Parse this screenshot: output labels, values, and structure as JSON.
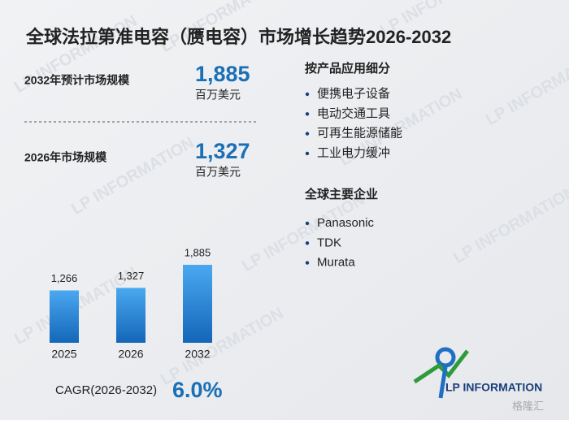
{
  "title": "全球法拉第准电容（赝电容）市场增长趋势2026-2032",
  "metrics": [
    {
      "label": "2032年预计市场规模",
      "value": "1,885",
      "unit": "百万美元"
    },
    {
      "label": "2026年市场规模",
      "value": "1,327",
      "unit": "百万美元"
    }
  ],
  "chart_data": {
    "type": "bar",
    "categories": [
      "2025",
      "2026",
      "2032"
    ],
    "values": [
      1266,
      1327,
      1885
    ],
    "value_labels": [
      "1,266",
      "1,327",
      "1,885"
    ],
    "color": "#1f7fd6"
  },
  "cagr": {
    "label": "CAGR(2026-2032)",
    "value": "6.0%"
  },
  "segments": {
    "title": "按产品应用细分",
    "items": [
      "便携电子设备",
      "电动交通工具",
      "可再生能源储能",
      "工业电力缓冲"
    ]
  },
  "companies": {
    "title": "全球主要企业",
    "items": [
      "Panasonic",
      "TDK",
      "Murata"
    ]
  },
  "logo": "LP INFORMATION",
  "watermark": "LP INFORMATION",
  "source_watermark": "格隆汇"
}
